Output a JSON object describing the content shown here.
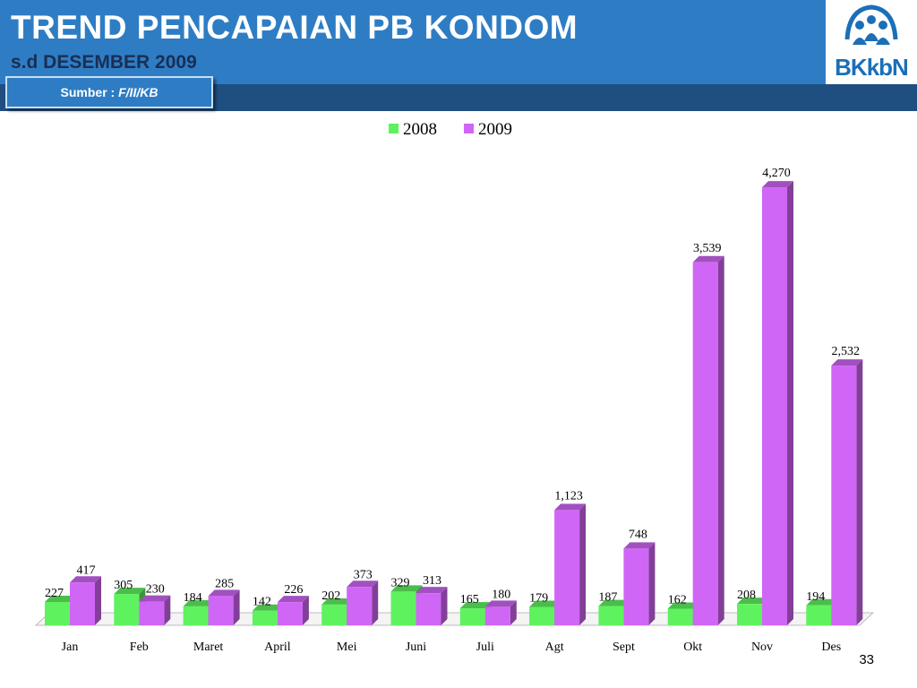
{
  "header": {
    "title": "TREND PENCAPAIAN PB KONDOM",
    "subtitle": "s.d  DESEMBER  2009",
    "source_label": "Sumber :",
    "source_value": "F/II/KB",
    "logo_text": "BKkbN"
  },
  "page_number": "33",
  "colors": {
    "header_bg": "#2e7dc4",
    "band_bg": "#1f4f80",
    "series_2008": "#5ff25f",
    "series_2009": "#d066f5"
  },
  "chart_data": {
    "type": "bar",
    "title": "",
    "xlabel": "",
    "ylabel": "",
    "categories": [
      "Jan",
      "Feb",
      "Maret",
      "April",
      "Mei",
      "Juni",
      "Juli",
      "Agt",
      "Sept",
      "Okt",
      "Nov",
      "Des"
    ],
    "series": [
      {
        "name": "2008",
        "color": "#5ff25f",
        "values": [
          227,
          305,
          184,
          142,
          202,
          329,
          165,
          179,
          187,
          162,
          208,
          194
        ],
        "labels": [
          "227",
          "305",
          "184",
          "142",
          "202",
          "329",
          "165",
          "179",
          "187",
          "162",
          "208",
          "194"
        ]
      },
      {
        "name": "2009",
        "color": "#d066f5",
        "values": [
          417,
          230,
          285,
          226,
          373,
          313,
          180,
          1123,
          748,
          3539,
          4270,
          2532
        ],
        "labels": [
          "417",
          "230",
          "285",
          "226",
          "373",
          "313",
          "180",
          "1,123",
          "748",
          "3,539",
          "4,270",
          "2,532"
        ]
      }
    ],
    "legend": "top-center",
    "grid": false,
    "style": "3d-column"
  }
}
